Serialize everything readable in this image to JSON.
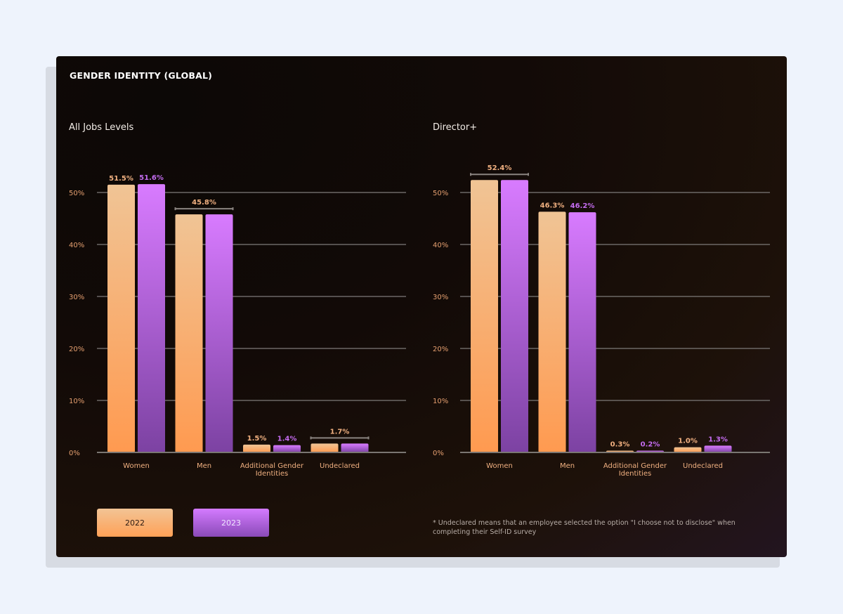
{
  "title": "GENDER IDENTITY (GLOBAL)",
  "legend": [
    {
      "label": "2022",
      "color": "#ffa157"
    },
    {
      "label": "2023",
      "color": "#b060e0"
    }
  ],
  "footnote": "*  Undeclared means that an employee selected the option \"I choose not to disclose\" when completing their Self-ID survey",
  "chart_data": [
    {
      "type": "bar",
      "title": "All Jobs Levels",
      "categories": [
        "Women",
        "Men",
        "Additional Gender Identities",
        "Undeclared"
      ],
      "yticks": [
        "0%",
        "10%",
        "20%",
        "30%",
        "40%",
        "50%"
      ],
      "ylim": [
        0,
        55
      ],
      "grid": true,
      "series": [
        {
          "name": "2022",
          "values": [
            51.5,
            45.8,
            1.5,
            1.7
          ]
        },
        {
          "name": "2023",
          "values": [
            51.6,
            45.8,
            1.4,
            1.7
          ]
        }
      ],
      "labels": [
        [
          "51.5%",
          "51.6%"
        ],
        [
          "45.8%"
        ],
        [
          "1.5%",
          "1.4%"
        ],
        [
          "1.7%"
        ]
      ]
    },
    {
      "type": "bar",
      "title": "Director+",
      "categories": [
        "Women",
        "Men",
        "Additional Gender Identities",
        "Undeclared"
      ],
      "yticks": [
        "0%",
        "10%",
        "20%",
        "30%",
        "40%",
        "50%"
      ],
      "ylim": [
        0,
        55
      ],
      "grid": true,
      "series": [
        {
          "name": "2022",
          "values": [
            52.4,
            46.3,
            0.3,
            1.0
          ]
        },
        {
          "name": "2023",
          "values": [
            52.4,
            46.2,
            0.2,
            1.3
          ]
        }
      ],
      "labels": [
        [
          "52.4%"
        ],
        [
          "46.3%",
          "46.2%"
        ],
        [
          "0.3%",
          "0.2%"
        ],
        [
          "1.0%",
          "1.3%"
        ]
      ]
    }
  ]
}
